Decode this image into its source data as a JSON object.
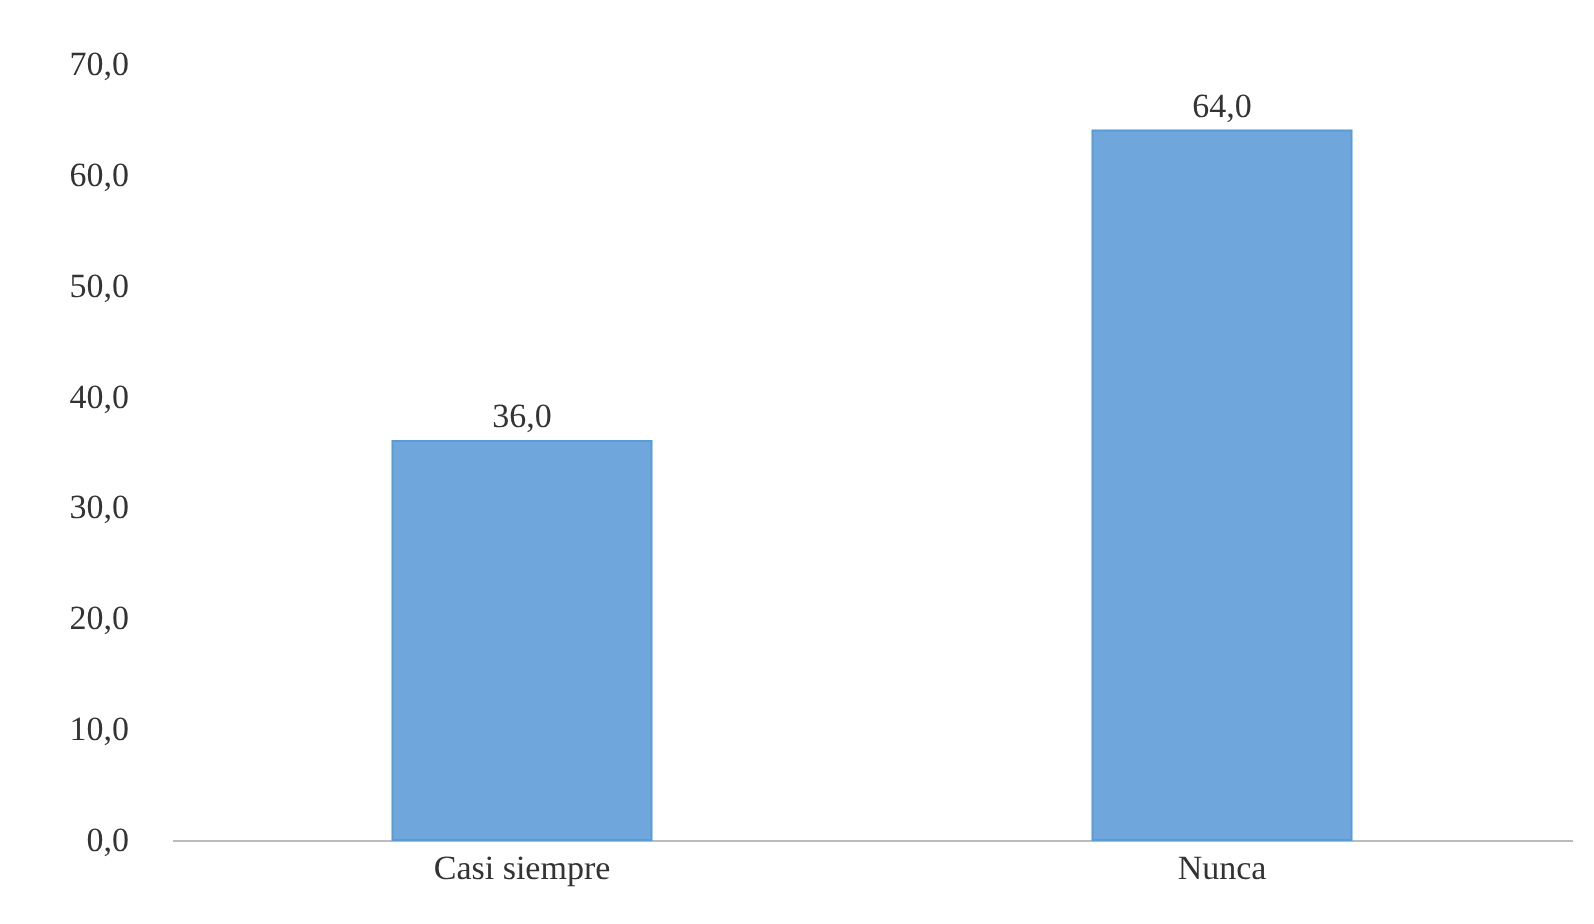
{
  "chart_data": {
    "type": "bar",
    "categories": [
      "Casi siempre",
      "Nunca"
    ],
    "values": [
      36,
      64
    ],
    "value_labels": [
      "36,0",
      "64,0"
    ],
    "color": "#6fa6dc",
    "ylim": [
      0,
      70
    ],
    "yticks": [
      {
        "value": 0,
        "label": "0,0"
      },
      {
        "value": 10,
        "label": "10,0"
      },
      {
        "value": 20,
        "label": "20,0"
      },
      {
        "value": 30,
        "label": "30,0"
      },
      {
        "value": 40,
        "label": "40,0"
      },
      {
        "value": 50,
        "label": "50,0"
      },
      {
        "value": 60,
        "label": "60,0"
      },
      {
        "value": 70,
        "label": "70,0"
      }
    ],
    "grid": false
  }
}
